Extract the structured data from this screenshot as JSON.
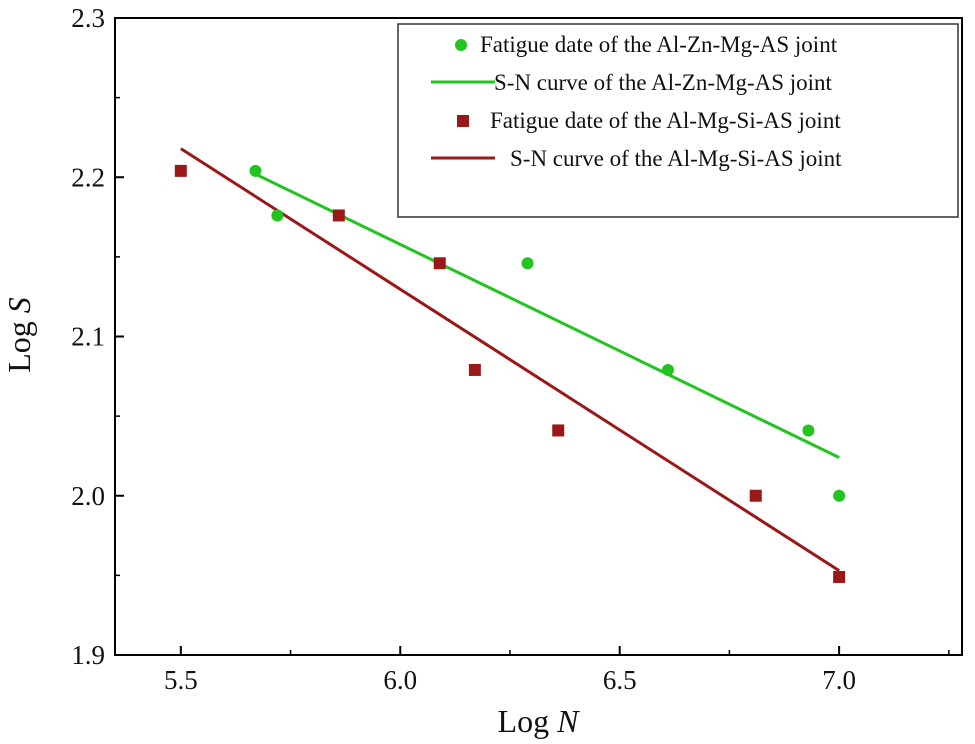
{
  "chart_data": {
    "type": "scatter",
    "title": "",
    "xlabel": {
      "base": "Log ",
      "var": "N"
    },
    "ylabel": {
      "base": "Log ",
      "var": "S"
    },
    "xlim": [
      5.35,
      7.28
    ],
    "ylim": [
      1.9,
      2.3
    ],
    "xticks": [
      5.5,
      6.0,
      6.5,
      7.0
    ],
    "xtick_labels": [
      "5.5",
      "6.0",
      "6.5",
      "7.0"
    ],
    "yticks": [
      1.9,
      2.0,
      2.1,
      2.2,
      2.3
    ],
    "ytick_labels": [
      "1.9",
      "2.0",
      "2.1",
      "2.2",
      "2.3"
    ],
    "grid": false,
    "legend_position": "top-right",
    "colors": {
      "green": "#22c41f",
      "red": "#9b1818"
    },
    "series": [
      {
        "name": "Fatigue date of the Al-Zn-Mg-AS joint",
        "kind": "scatter",
        "marker": "circle",
        "color": "#22c41f",
        "points": [
          [
            5.67,
            2.204
          ],
          [
            5.72,
            2.176
          ],
          [
            6.29,
            2.146
          ],
          [
            6.61,
            2.079
          ],
          [
            6.93,
            2.041
          ],
          [
            7.0,
            2.0
          ]
        ]
      },
      {
        "name": "S-N curve of the Al-Zn-Mg-AS joint",
        "kind": "line",
        "color": "#22c41f",
        "points": [
          [
            5.67,
            2.202
          ],
          [
            7.0,
            2.024
          ]
        ]
      },
      {
        "name": "Fatigue date of the Al-Mg-Si-AS joint",
        "kind": "scatter",
        "marker": "square",
        "color": "#9b1818",
        "points": [
          [
            5.5,
            2.204
          ],
          [
            5.86,
            2.176
          ],
          [
            6.09,
            2.146
          ],
          [
            6.17,
            2.079
          ],
          [
            6.36,
            2.041
          ],
          [
            6.81,
            2.0
          ],
          [
            7.0,
            1.949
          ]
        ]
      },
      {
        "name": "S-N curve of the Al-Mg-Si-AS joint",
        "kind": "line",
        "color": "#9b1818",
        "points": [
          [
            5.5,
            2.218
          ],
          [
            7.0,
            1.953
          ]
        ]
      }
    ]
  }
}
